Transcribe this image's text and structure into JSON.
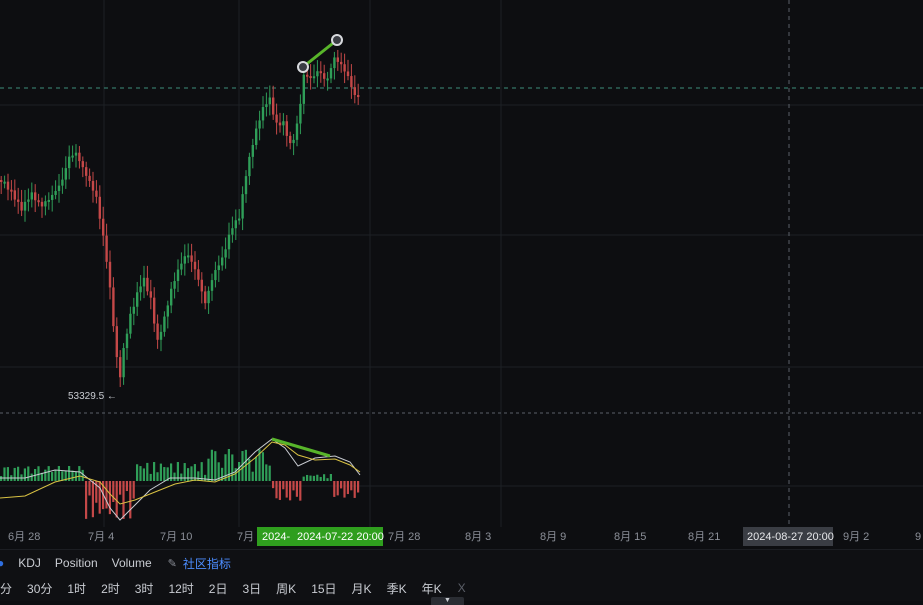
{
  "colors": {
    "up": "#2f9e58",
    "down": "#c44848",
    "accent_green": "#58b52a",
    "yellow_line": "#d9c243",
    "white_line": "#c9ccd2",
    "grid": "#1d2025",
    "background": "#0d0e11"
  },
  "price_chart": {
    "low_label": "53329.5 ←"
  },
  "time_axis": {
    "labels": [
      "6月 28",
      "7月 4",
      "7月 10",
      "7月",
      "7月 28",
      "8月 3",
      "8月 9",
      "8月 15",
      "8月 21",
      "9月 2",
      "9"
    ],
    "cursor_start_label": "2024-",
    "cursor_label": "2024-07-22 20:00",
    "crosshair_label": "2024-08-27 20:00"
  },
  "indicator_bar": {
    "items": [
      "KDJ",
      "Position",
      "Volume"
    ],
    "community_label": "社区指标",
    "edit_icon": "edit-icon"
  },
  "interval_bar": {
    "intervals": [
      "分",
      "30分",
      "1时",
      "2时",
      "3时",
      "12时",
      "2日",
      "3日",
      "周K",
      "15日",
      "月K",
      "季K",
      "年K"
    ],
    "close_label": "X"
  }
}
